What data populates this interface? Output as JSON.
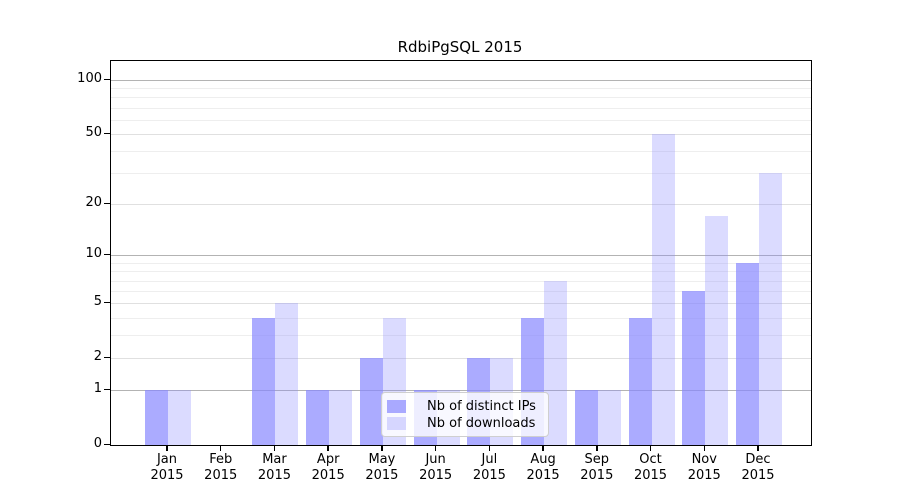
{
  "chart_data": {
    "type": "bar",
    "title": "RdbiPgSQL 2015",
    "categories": [
      "Jan",
      "Feb",
      "Mar",
      "Apr",
      "May",
      "Jun",
      "Jul",
      "Aug",
      "Sep",
      "Oct",
      "Nov",
      "Dec"
    ],
    "category_year": "2015",
    "series": [
      {
        "name": "Nb of distinct IPs",
        "color": "rgba(136,136,255,0.7)",
        "values": [
          1,
          0,
          4,
          1,
          2,
          1,
          2,
          4,
          1,
          4,
          6,
          9
        ]
      },
      {
        "name": "Nb of downloads",
        "color": "rgba(136,136,255,0.3)",
        "values": [
          1,
          0,
          5,
          1,
          4,
          1,
          2,
          7,
          1,
          50,
          17,
          30
        ]
      }
    ],
    "yscale": "log10(1+x)",
    "y_ticks": [
      0,
      1,
      2,
      5,
      10,
      20,
      50,
      100
    ],
    "y_tick_labels": [
      "0",
      "1",
      "2",
      "5",
      "10",
      "20",
      "50",
      "100"
    ],
    "y_major_gridlines": [
      1,
      10,
      100
    ],
    "y_medium_gridlines": [
      2,
      5,
      20,
      50
    ],
    "y_minor_gridlines": [
      3,
      4,
      6,
      7,
      8,
      9,
      30,
      40,
      60,
      70,
      80,
      90
    ],
    "grid": true,
    "legend_position": "inside-bottom-center",
    "colors": {
      "bar_base": "#8888ff",
      "grid_major": "#b3b3b3",
      "grid_medium": "#e0e0e0",
      "grid_minor": "#eeeeee",
      "axis": "#000000",
      "legend_border": "#cfcfcf"
    }
  }
}
